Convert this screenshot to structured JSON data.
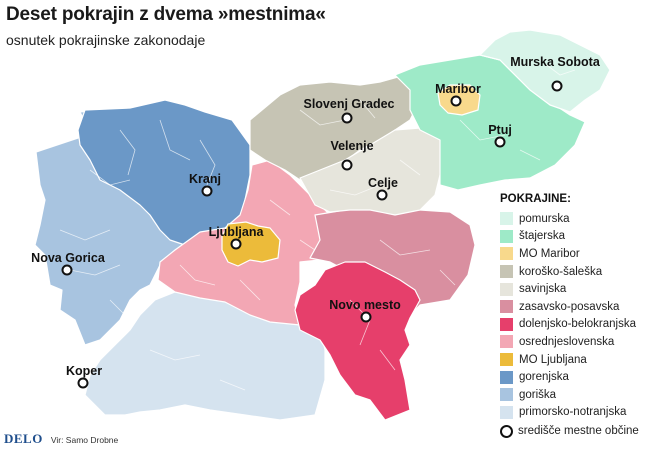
{
  "header": {
    "title": "Deset pokrajin z dvema »mestnima«",
    "subtitle": "osnutek pokrajinske zakonodaje"
  },
  "legend": {
    "title": "POKRAJINE:",
    "items": [
      {
        "label": "pomurska",
        "color": "#d8f4e9"
      },
      {
        "label": "štajerska",
        "color": "#9eeac8"
      },
      {
        "label": "MO Maribor",
        "color": "#f8d98c"
      },
      {
        "label": "koroško-šaleška",
        "color": "#c6c4b4"
      },
      {
        "label": "savinjska",
        "color": "#e6e5dc"
      },
      {
        "label": "zasavsko-posavska",
        "color": "#d98fa0"
      },
      {
        "label": "dolenjsko-belokranjska",
        "color": "#e63f6b"
      },
      {
        "label": "osrednjeslovenska",
        "color": "#f3a7b4"
      },
      {
        "label": "MO Ljubljana",
        "color": "#ecbb3a"
      },
      {
        "label": "gorenjska",
        "color": "#6b98c7"
      },
      {
        "label": "goriška",
        "color": "#a8c4e0"
      },
      {
        "label": "primorsko-notranjska",
        "color": "#d5e3ef"
      }
    ],
    "seat_label": "središče mestne občine"
  },
  "cities": [
    {
      "name": "Murska Sobota"
    },
    {
      "name": "Maribor"
    },
    {
      "name": "Slovenj Gradec"
    },
    {
      "name": "Ptuj"
    },
    {
      "name": "Velenje"
    },
    {
      "name": "Celje"
    },
    {
      "name": "Kranj"
    },
    {
      "name": "Ljubljana"
    },
    {
      "name": "Nova Gorica"
    },
    {
      "name": "Novo mesto"
    },
    {
      "name": "Koper"
    }
  ],
  "footer": {
    "logo": "DELO",
    "source": "Vir: Samo Drobne"
  }
}
